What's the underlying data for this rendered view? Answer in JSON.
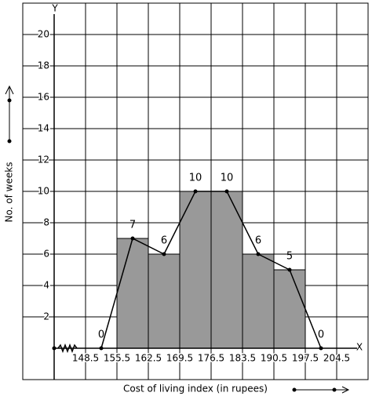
{
  "chart_data": {
    "type": "histogram",
    "bins": [
      148.5,
      155.5,
      162.5,
      169.5,
      176.5,
      183.5,
      190.5,
      197.5
    ],
    "values": [
      0,
      7,
      6,
      10,
      10,
      6,
      5
    ],
    "color": "#999999",
    "polygon": {
      "x": [
        152,
        159,
        166,
        173,
        180,
        187,
        194,
        201
      ],
      "values": [
        0,
        7,
        6,
        10,
        10,
        6,
        5,
        0
      ]
    },
    "xlim": [
      134.5,
      211.5
    ],
    "ylim": [
      -2,
      22
    ],
    "xticks": [
      148.5,
      155.5,
      162.5,
      169.5,
      176.5,
      183.5,
      190.5,
      197.5,
      204.5
    ],
    "yticks": [
      2,
      4,
      6,
      8,
      10,
      12,
      14,
      16,
      18,
      20
    ],
    "xlabel": "Cost of living index (in rupees)",
    "ylabel": "No. of weeks",
    "x_axis_name": "X",
    "y_axis_name": "Y",
    "grid": true
  }
}
